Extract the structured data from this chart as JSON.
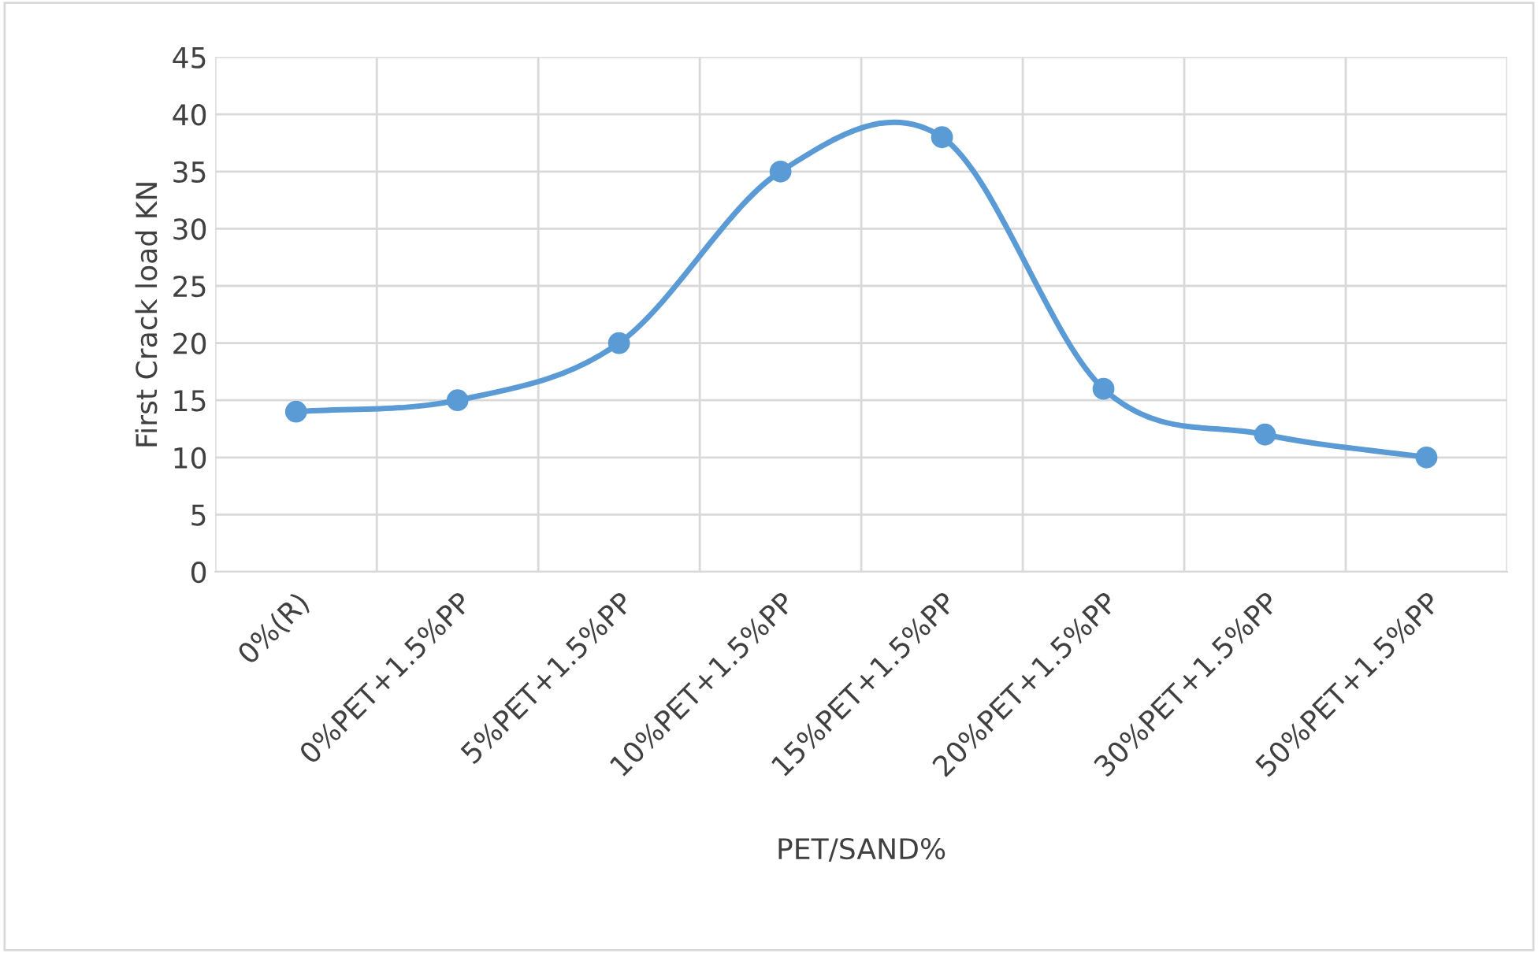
{
  "chart_data": {
    "type": "line",
    "xlabel": "PET/SAND%",
    "ylabel": "First Crack load KN",
    "categories": [
      "0%(R)",
      "0%PET+1.5%PP",
      "5%PET+1.5%PP",
      "10%PET+1.5%PP",
      "15%PET+1.5%PP",
      "20%PET+1.5%PP",
      "30%PET+1.5%PP",
      "50%PET+1.5%PP"
    ],
    "series": [
      {
        "color": "#5b9bd5",
        "values": [
          14,
          15,
          20,
          35,
          38,
          16,
          12,
          10
        ]
      }
    ],
    "ylim": [
      0,
      45
    ],
    "yticks": [
      0,
      5,
      10,
      15,
      20,
      25,
      30,
      35,
      40,
      45
    ],
    "grid": true,
    "marker": "circle",
    "line_style": "solid"
  }
}
